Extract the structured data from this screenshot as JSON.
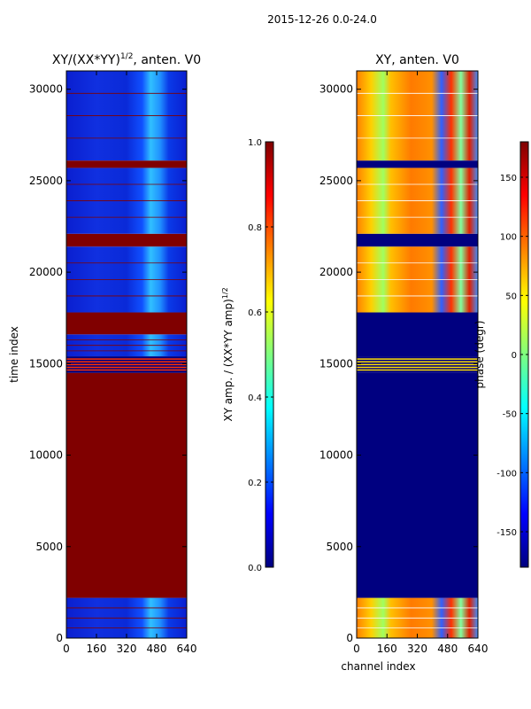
{
  "figure": {
    "suptitle": "2015-12-26 0.0-24.0"
  },
  "chart_data": [
    {
      "type": "heatmap",
      "title": "XY/(XX*YY)",
      "title_exp": "1/2",
      "title_suffix": ", anten. V0",
      "xlabel": "",
      "ylabel": "time index",
      "xlim": [
        0,
        640
      ],
      "ylim": [
        0,
        31000
      ],
      "xticks": [
        "0",
        "160",
        "320",
        "480",
        "640"
      ],
      "yticks": [
        "0",
        "5000",
        "10000",
        "15000",
        "20000",
        "25000",
        "30000"
      ],
      "colorbar": {
        "label": "XY amp. / (XX*YY amp)",
        "label_exp": "1/2",
        "range": [
          0.0,
          1.0
        ],
        "ticks": [
          "0.0",
          "0.2",
          "0.4",
          "0.6",
          "0.8",
          "1.0"
        ],
        "colormap": "jet"
      },
      "bands": [
        {
          "from": 0,
          "to": 2200,
          "pattern": "low_amp_noisy"
        },
        {
          "from": 2200,
          "to": 14500,
          "value": 1.0
        },
        {
          "from": 14500,
          "to": 15400,
          "pattern": "stripes"
        },
        {
          "from": 15400,
          "to": 16600,
          "pattern": "low_amp_noisy"
        },
        {
          "from": 16600,
          "to": 17800,
          "value": 1.0
        },
        {
          "from": 17800,
          "to": 21400,
          "pattern": "low_amp_noisy"
        },
        {
          "from": 21400,
          "to": 22100,
          "value": 1.0
        },
        {
          "from": 22100,
          "to": 25700,
          "pattern": "low_amp_noisy"
        },
        {
          "from": 25700,
          "to": 26100,
          "value": 1.0
        },
        {
          "from": 26100,
          "to": 31000,
          "pattern": "low_amp_noisy"
        }
      ]
    },
    {
      "type": "heatmap",
      "title": "XY, anten. V0",
      "xlabel": "channel index",
      "ylabel": "",
      "xlim": [
        0,
        640
      ],
      "ylim": [
        0,
        31000
      ],
      "xticks": [
        "0",
        "160",
        "320",
        "480",
        "640"
      ],
      "yticks": [
        "0",
        "5000",
        "10000",
        "15000",
        "20000",
        "25000",
        "30000"
      ],
      "colorbar": {
        "label": "phase (degr)",
        "range": [
          -180,
          180
        ],
        "ticks": [
          "-150",
          "-100",
          "-50",
          "0",
          "50",
          "100",
          "150"
        ],
        "colormap": "jet"
      },
      "bands": [
        {
          "from": 0,
          "to": 2200,
          "pattern": "phase_varied"
        },
        {
          "from": 2200,
          "to": 14500,
          "value": -180
        },
        {
          "from": 14500,
          "to": 15400,
          "pattern": "stripes"
        },
        {
          "from": 15400,
          "to": 17800,
          "value": -180
        },
        {
          "from": 17800,
          "to": 21400,
          "pattern": "phase_varied"
        },
        {
          "from": 21400,
          "to": 22100,
          "value": -180
        },
        {
          "from": 22100,
          "to": 25700,
          "pattern": "phase_varied"
        },
        {
          "from": 25700,
          "to": 26100,
          "value": -180
        },
        {
          "from": 26100,
          "to": 31000,
          "pattern": "phase_varied"
        }
      ]
    }
  ]
}
